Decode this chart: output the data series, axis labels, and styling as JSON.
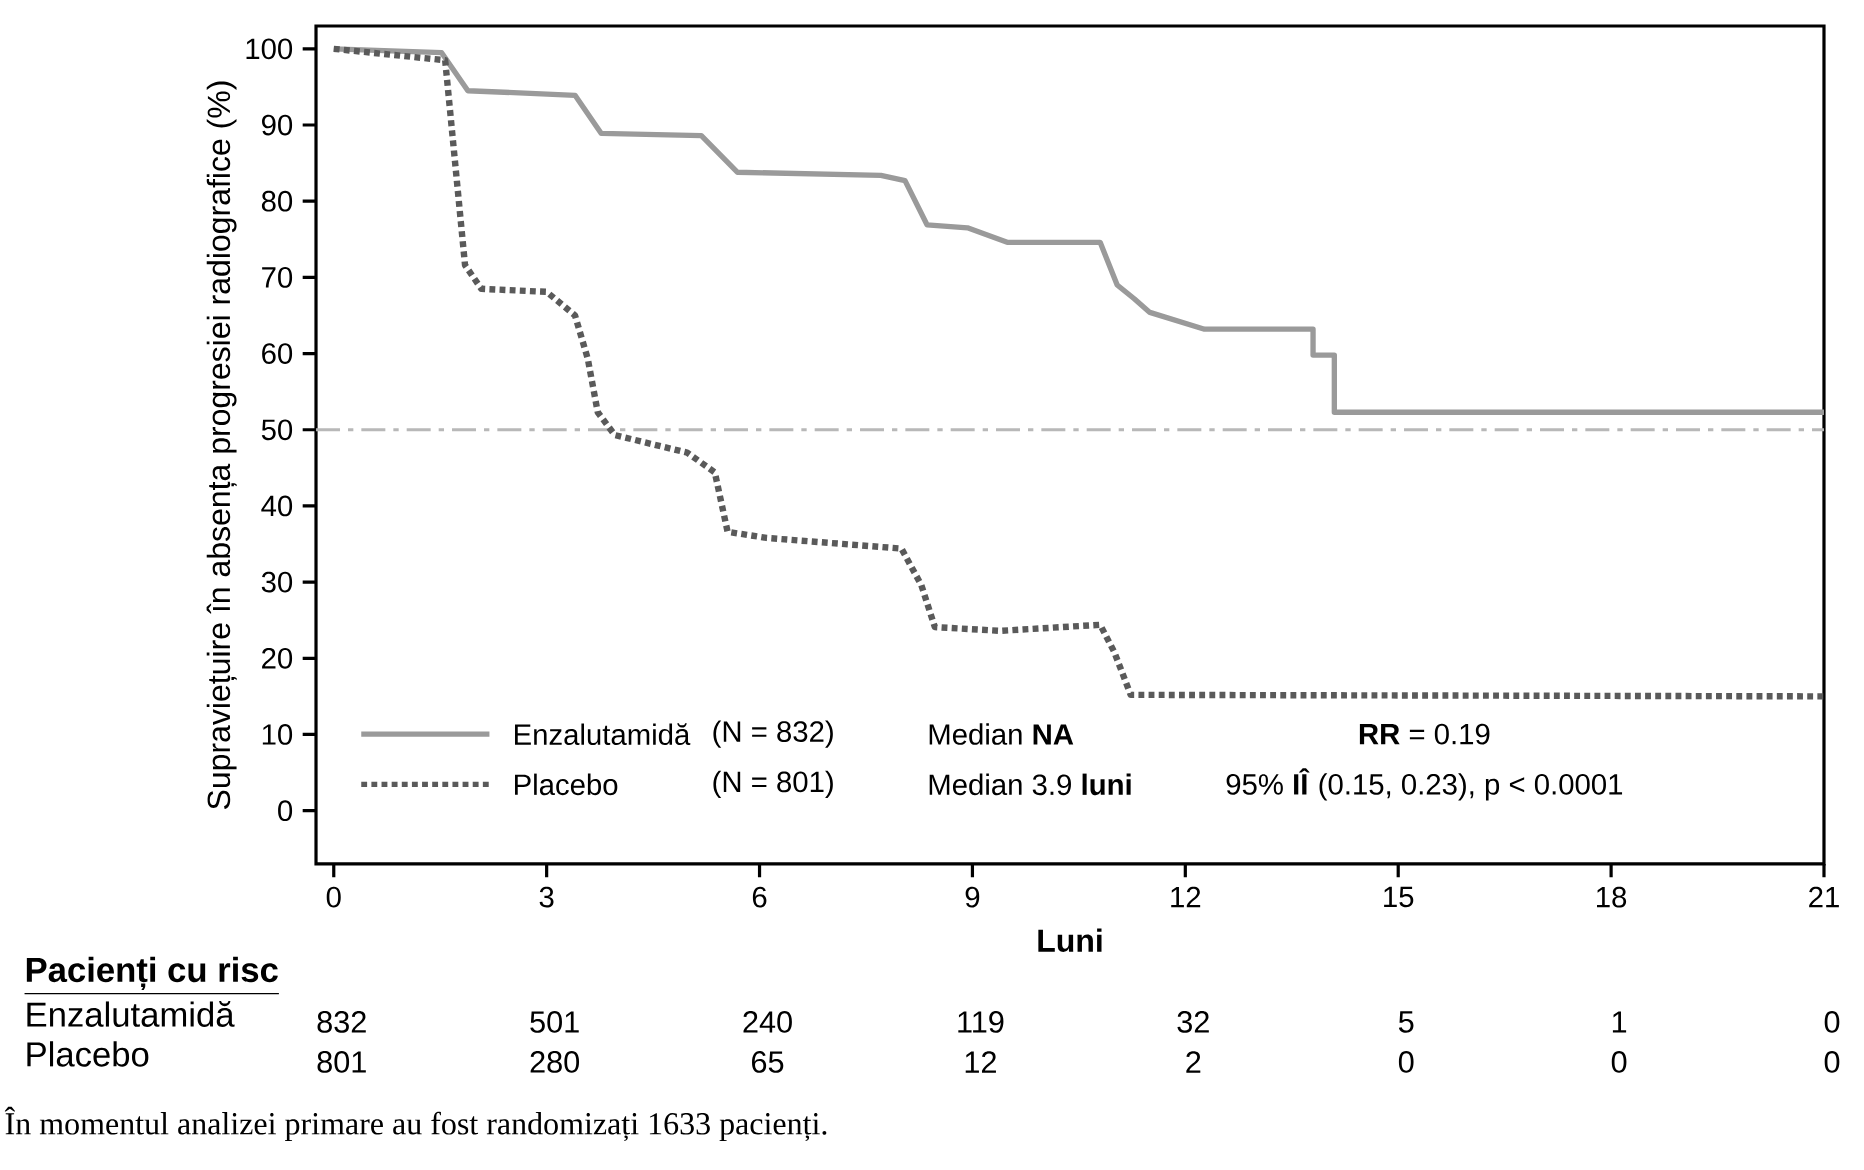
{
  "chart_data": {
    "type": "line",
    "xlabel": "Luni",
    "ylabel": "Supraviețuire în absența progresiei radiografice (%)",
    "xlim": [
      -0.25,
      21
    ],
    "ylim": [
      -7,
      103
    ],
    "xticks": [
      0,
      3,
      6,
      9,
      12,
      15,
      18,
      21
    ],
    "yticks": [
      0,
      10,
      20,
      30,
      40,
      50,
      60,
      70,
      80,
      90,
      100
    ],
    "legend": "bottom left",
    "grid": false,
    "series": [
      {
        "name": "Enzalutamidă",
        "color": "#9a9a9a",
        "line_style": "solid",
        "x": [
          0,
          1.52,
          1.89,
          3.4,
          3.77,
          5.18,
          5.69,
          7.71,
          8.05,
          8.36,
          8.93,
          9.49,
          10.8,
          11.04,
          11.28,
          11.5,
          12.27,
          13.8,
          13.8,
          14.1,
          14.1,
          21
        ],
        "values": [
          100,
          99.5,
          94.5,
          93.9,
          88.9,
          88.6,
          83.8,
          83.4,
          82.7,
          76.9,
          76.5,
          74.6,
          74.6,
          69,
          67.2,
          65.4,
          63.2,
          63.2,
          59.8,
          59.8,
          52.3,
          52.3
        ]
      },
      {
        "name": "Placebo",
        "color": "#5a5a5a",
        "line_style": "dotted",
        "x": [
          0,
          1.57,
          1.85,
          2.08,
          3.0,
          3.4,
          3.58,
          3.72,
          3.96,
          4.98,
          5.37,
          5.55,
          6.1,
          8.0,
          8.28,
          8.47,
          9.4,
          10.8,
          11.0,
          11.23,
          21
        ],
        "values": [
          100,
          98.5,
          71.6,
          68.5,
          68.1,
          65,
          59.3,
          52.3,
          49.3,
          47,
          44.4,
          36.6,
          35.8,
          34.4,
          29.6,
          24.1,
          23.6,
          24.4,
          20.8,
          15.2,
          15
        ]
      }
    ],
    "ref_lines": [
      {
        "axis": "y",
        "value": 50,
        "color": "#b8b8b8",
        "line_style": "dashdot"
      }
    ],
    "annotations": [
      "(N = 832)",
      "(N = 801)",
      "Median **NA**",
      "Median 3.9 **luni**",
      "**RR** = 0.19",
      "95% **IÎ** (0.15, 0.23), p < 0.0001",
      "Pacienți cu risc",
      "Enzalutamidă",
      "832",
      "501",
      "240",
      "119",
      "32",
      "5",
      "1",
      "0",
      "Placebo",
      "801",
      "280",
      "65",
      "12",
      "2",
      "0",
      "0",
      "0",
      "În momentul analizei primare au fost randomizați 1633 pacienți."
    ]
  }
}
